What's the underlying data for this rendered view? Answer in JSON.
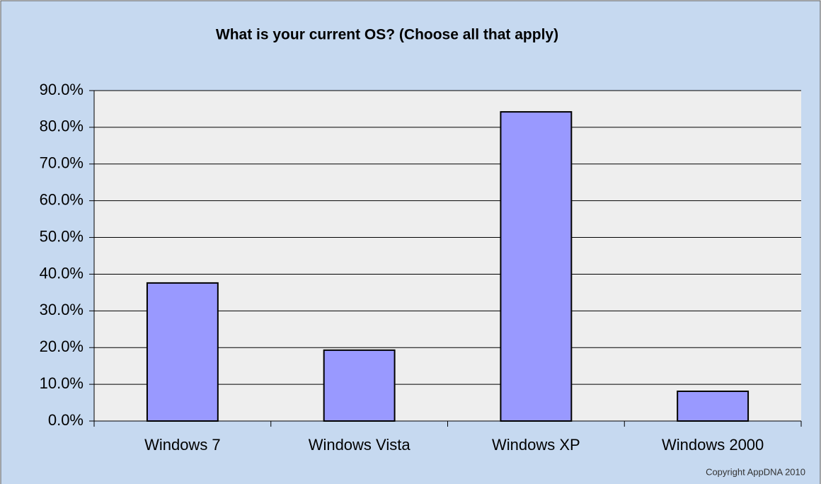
{
  "chart_data": {
    "type": "bar",
    "title": "What is your current OS? (Choose all that apply)",
    "categories": [
      "Windows 7",
      "Windows Vista",
      "Windows XP",
      "Windows 2000"
    ],
    "values": [
      37.6,
      19.3,
      84.2,
      8.1
    ],
    "color": "#9999ff",
    "ylim": [
      0,
      90
    ],
    "yticks": [
      {
        "value": 0,
        "label": "0.0%"
      },
      {
        "value": 10,
        "label": "10.0%"
      },
      {
        "value": 20,
        "label": "20.0%"
      },
      {
        "value": 30,
        "label": "30.0%"
      },
      {
        "value": 40,
        "label": "40.0%"
      },
      {
        "value": 50,
        "label": "50.0%"
      },
      {
        "value": 60,
        "label": "60.0%"
      },
      {
        "value": 70,
        "label": "70.0%"
      },
      {
        "value": 80,
        "label": "80.0%"
      },
      {
        "value": 90,
        "label": "90.0%"
      }
    ],
    "grid": true,
    "annotation": "Copyright AppDNA 2010"
  }
}
